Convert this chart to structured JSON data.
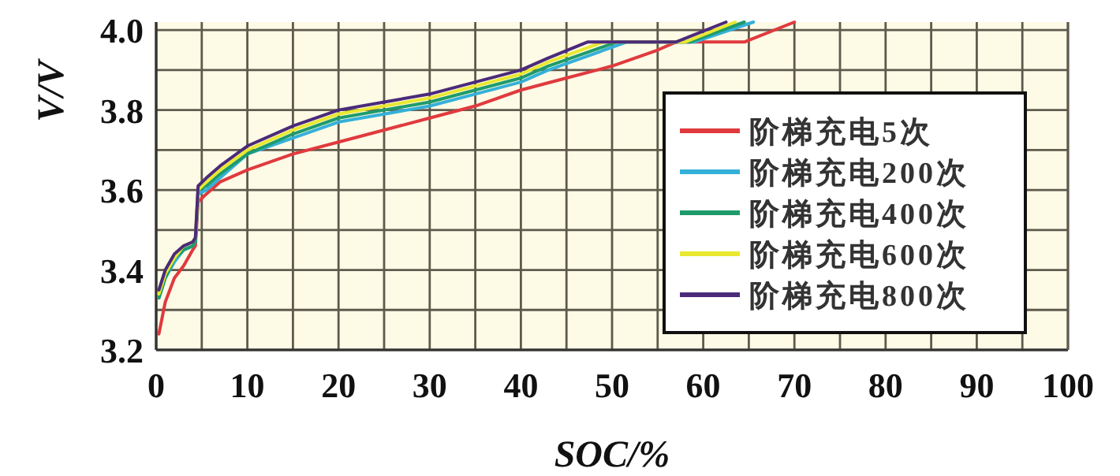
{
  "chart_data": {
    "type": "line",
    "xlabel": "SOC/%",
    "ylabel": "V/V",
    "xlim": [
      0,
      100
    ],
    "ylim": [
      3.2,
      4.02
    ],
    "xticks": [
      0,
      {
        "value": 5,
        "label": null
      },
      10,
      {
        "value": 15,
        "label": null
      },
      20,
      {
        "value": 25,
        "label": null
      },
      30,
      {
        "value": 35,
        "label": null
      },
      40,
      {
        "value": 45,
        "label": null
      },
      50,
      {
        "value": 55,
        "label": null
      },
      60,
      {
        "value": 65,
        "label": null
      },
      70,
      {
        "value": 75,
        "label": null
      },
      80,
      {
        "value": 85,
        "label": null
      },
      90,
      {
        "value": 95,
        "label": null
      },
      100
    ],
    "yticks": [
      3.2,
      {
        "value": 3.3,
        "label": null
      },
      3.4,
      {
        "value": 3.5,
        "label": null
      },
      3.6,
      {
        "value": 3.7,
        "label": null
      },
      3.8,
      {
        "value": 3.9,
        "label": null
      },
      {
        "value": 4,
        "label": "4.0"
      }
    ],
    "grid": true,
    "legend": "right",
    "line_style": "solid",
    "marker": "none",
    "series": [
      {
        "name": "阶梯充电5次",
        "color": "#e03a3e",
        "x": [
          0.3,
          1,
          2,
          3,
          4,
          4.3,
          4.6,
          5.5,
          7,
          10,
          15,
          20,
          25,
          30,
          35,
          40,
          45,
          50,
          55,
          57,
          64.5,
          70
        ],
        "values": [
          3.24,
          3.32,
          3.38,
          3.41,
          3.45,
          3.46,
          3.57,
          3.59,
          3.62,
          3.65,
          3.69,
          3.72,
          3.75,
          3.78,
          3.81,
          3.85,
          3.88,
          3.91,
          3.95,
          3.97,
          3.97,
          4.02
        ]
      },
      {
        "name": "阶梯充电200次",
        "color": "#35b0d8",
        "x": [
          0.3,
          1,
          2,
          3,
          4,
          4.3,
          4.6,
          5.5,
          7,
          10,
          15,
          20,
          25,
          30,
          35,
          40,
          43,
          51.6,
          59,
          65.5
        ],
        "values": [
          3.33,
          3.38,
          3.42,
          3.45,
          3.46,
          3.47,
          3.59,
          3.6,
          3.63,
          3.69,
          3.73,
          3.77,
          3.79,
          3.81,
          3.84,
          3.87,
          3.9,
          3.97,
          3.97,
          4.02
        ]
      },
      {
        "name": "阶梯充电400次",
        "color": "#1e9b6a",
        "x": [
          0.3,
          1,
          2,
          3,
          4,
          4.3,
          4.6,
          5.5,
          7,
          10,
          15,
          20,
          25,
          30,
          35,
          40,
          43,
          50.5,
          58.5,
          64.5
        ],
        "values": [
          3.33,
          3.38,
          3.43,
          3.45,
          3.46,
          3.47,
          3.6,
          3.61,
          3.64,
          3.69,
          3.74,
          3.78,
          3.8,
          3.82,
          3.85,
          3.88,
          3.91,
          3.97,
          3.97,
          4.02
        ]
      },
      {
        "name": "阶梯充电600次",
        "color": "#e8e830",
        "x": [
          0.3,
          1,
          2,
          3,
          4,
          4.3,
          4.6,
          5.5,
          7,
          10,
          15,
          20,
          25,
          30,
          35,
          40,
          43,
          49,
          58,
          63.5
        ],
        "values": [
          3.34,
          3.39,
          3.43,
          3.46,
          3.47,
          3.48,
          3.6,
          3.62,
          3.65,
          3.7,
          3.75,
          3.79,
          3.81,
          3.83,
          3.86,
          3.89,
          3.92,
          3.97,
          3.97,
          4.02
        ]
      },
      {
        "name": "阶梯充电800次",
        "color": "#4b2a7a",
        "x": [
          0.3,
          1,
          2,
          3,
          4,
          4.3,
          4.6,
          5.5,
          7,
          10,
          15,
          20,
          25,
          30,
          35,
          40,
          43,
          47.3,
          57,
          62.5
        ],
        "values": [
          3.35,
          3.4,
          3.44,
          3.46,
          3.47,
          3.48,
          3.61,
          3.63,
          3.66,
          3.71,
          3.76,
          3.8,
          3.82,
          3.84,
          3.87,
          3.9,
          3.93,
          3.97,
          3.97,
          4.02
        ]
      }
    ]
  }
}
